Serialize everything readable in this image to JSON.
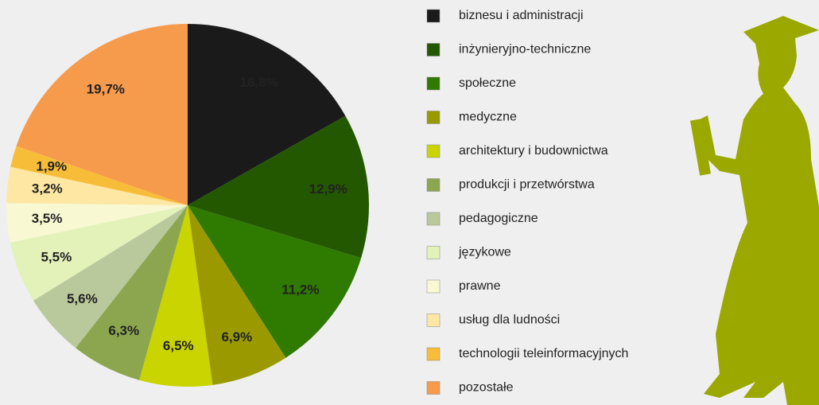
{
  "chart_data": {
    "type": "pie",
    "categories": [
      "biznesu i administracji",
      "inżynieryjno-techniczne",
      "społeczne",
      "medyczne",
      "architektury i budownictwa",
      "produkcji i przetwórstwa",
      "pedagogiczne",
      "językowe",
      "prawne",
      "usług dla ludności",
      "technologii teleinformacyjnych",
      "pozostałe"
    ],
    "values": [
      16.8,
      12.9,
      11.2,
      6.9,
      6.5,
      6.3,
      5.6,
      5.5,
      3.5,
      3.2,
      1.9,
      19.7
    ],
    "value_labels": [
      "16,8%",
      "12,9%",
      "11,2%",
      "6,9%",
      "6,5%",
      "6,3%",
      "5,6%",
      "5,5%",
      "3,5%",
      "3,2%",
      "1,9%",
      "19,7%"
    ],
    "colors": [
      "#1a1a1a",
      "#235800",
      "#2f7a00",
      "#9a9a00",
      "#c9d400",
      "#8ba64e",
      "#b9c99b",
      "#e2f2b9",
      "#f8f8d2",
      "#fde7a2",
      "#f8bd38",
      "#f69a4c"
    ],
    "legend": "right"
  }
}
